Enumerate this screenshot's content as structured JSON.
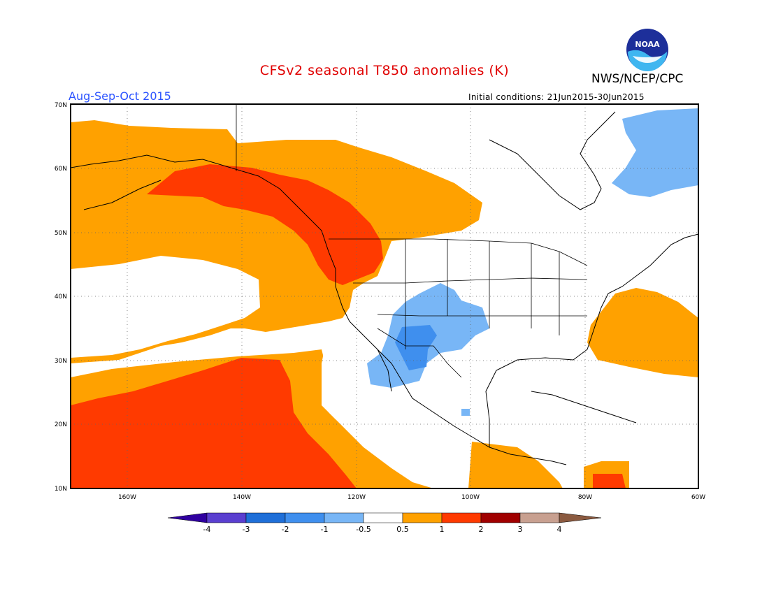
{
  "title": "CFSv2 seasonal T850 anomalies (K)",
  "period": "Aug-Sep-Oct 2015",
  "agency": "NWS/NCEP/CPC",
  "logo_text": "NOAA",
  "initial_conditions": "Initial conditions: 21Jun2015-30Jun2015",
  "map": {
    "lat_ticks": [
      "10N",
      "20N",
      "30N",
      "40N",
      "50N",
      "60N",
      "70N"
    ],
    "lon_ticks": [
      "160W",
      "140W",
      "120W",
      "100W",
      "80W",
      "60W"
    ],
    "colors": {
      "blue_dark": "#3b8df0",
      "blue_light": "#78b6f6",
      "orange": "#ffa100",
      "red": "#ff3a00",
      "white": "#ffffff"
    }
  },
  "colorbar": {
    "labels": [
      "-4",
      "-3",
      "-2",
      "-1",
      "-0.5",
      "0.5",
      "1",
      "2",
      "3",
      "4"
    ],
    "colors": [
      "#3000a0",
      "#5a3fd0",
      "#1f6fd8",
      "#3f8fee",
      "#78b6f6",
      "#ffffff",
      "#ffa100",
      "#ff3a00",
      "#a00000",
      "#c8a090",
      "#8b5a40"
    ]
  }
}
